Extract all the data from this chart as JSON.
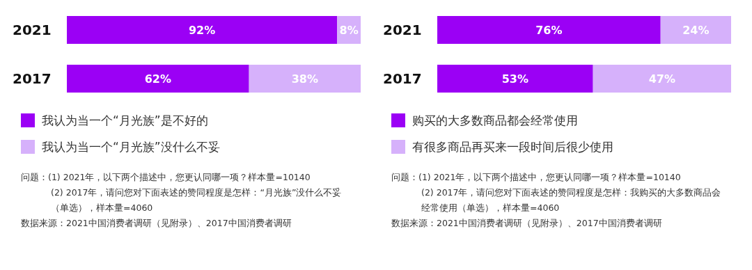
{
  "chart_data": [
    {
      "type": "bar",
      "orientation": "horizontal",
      "stacked": true,
      "categories": [
        "2021",
        "2017"
      ],
      "series": [
        {
          "name": "我认为当一个“月光族”是不好的",
          "color": "#9b00f5",
          "values": [
            92,
            62
          ],
          "value_labels": [
            "92%",
            "62%"
          ]
        },
        {
          "name": "我认为当一个“月光族”没什么不妥",
          "color": "#d6b1fb",
          "values": [
            8,
            38
          ],
          "value_labels": [
            "8%",
            "38%"
          ]
        }
      ],
      "legend": "bottom",
      "grid": false,
      "tick_labels": "y",
      "annotations": [
        "问题：(1) 2021年，以下两个描述中，您更认同哪一项？样本量=10140",
        "(2) 2017年，请问您对下面表述的赞同程度是怎样：“月光族”没什么不妥（单选），样本量=4060",
        "数据来源：2021中国消费者调研（见附录）、2017中国消费者调研"
      ]
    },
    {
      "type": "bar",
      "orientation": "horizontal",
      "stacked": true,
      "categories": [
        "2021",
        "2017"
      ],
      "series": [
        {
          "name": "购买的大多数商品都会经常使用",
          "color": "#9b00f5",
          "values": [
            76,
            53
          ],
          "value_labels": [
            "76%",
            "53%"
          ]
        },
        {
          "name": "有很多商品再买来一段时间后很少使用",
          "color": "#d6b1fb",
          "values": [
            24,
            47
          ],
          "value_labels": [
            "24%",
            "47%"
          ]
        }
      ],
      "legend": "bottom",
      "grid": false,
      "tick_labels": "y",
      "annotations": [
        "问题：(1) 2021年，以下两个描述中，您更认同哪一项？样本量=10140",
        "(2) 2017年，请问您对下面表述的赞同程度是怎样：我购买的大多数商品会经常使用（单选），样本量=4060",
        "数据来源：2021中国消费者调研（见附录）、2017中国消费者调研"
      ]
    }
  ]
}
